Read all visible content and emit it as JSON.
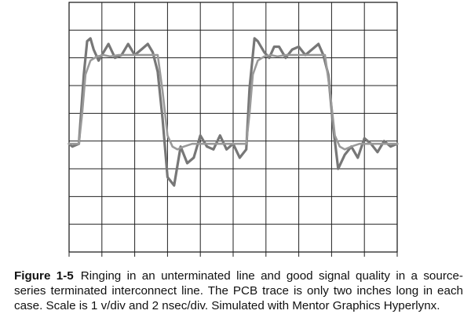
{
  "figure": {
    "label": "Figure 1-5",
    "caption": "Ringing in an unterminated line and good signal quality in a source-series terminated interconnect line. The PCB trace is only two inches long in each case. Scale is 1 v/div and 2 nsec/div. Simulated with Mentor Graphics Hyperlynx."
  },
  "chart_data": {
    "type": "line",
    "title": "",
    "xlabel": "",
    "ylabel": "",
    "x_units": "ns",
    "y_units": "V",
    "x_per_div": 2,
    "y_per_div": 1,
    "xlim": [
      0,
      20
    ],
    "ylim": [
      -7,
      2
    ],
    "x_divisions": 10,
    "y_divisions": 9,
    "grid": true,
    "legend": "none",
    "series": [
      {
        "name": "",
        "color": "#777777",
        "x": [
          0,
          0.2,
          0.6,
          0.9,
          1.1,
          1.3,
          1.5,
          1.8,
          2.1,
          2.4,
          2.8,
          3.2,
          3.6,
          4.0,
          4.4,
          4.8,
          5.1,
          5.4,
          5.7,
          6.0,
          6.4,
          6.8,
          7.2,
          7.6,
          8.0,
          8.4,
          8.8,
          9.2,
          9.6,
          10.0,
          10.4,
          10.8,
          11.0,
          11.3,
          11.5,
          11.7,
          11.9,
          12.2,
          12.5,
          12.8,
          13.2,
          13.6,
          14.0,
          14.4,
          14.8,
          15.2,
          15.5,
          15.8,
          16.1,
          16.4,
          16.8,
          17.2,
          17.6,
          18.0,
          18.4,
          18.8,
          19.2,
          19.6,
          20.0
        ],
        "y": [
          -3.1,
          -3.2,
          -3.1,
          -0.6,
          0.6,
          0.7,
          0.3,
          -0.1,
          0.2,
          0.5,
          0.0,
          0.1,
          0.5,
          0.1,
          0.3,
          0.5,
          0.2,
          -0.5,
          -2.2,
          -4.3,
          -4.6,
          -3.2,
          -3.8,
          -3.6,
          -2.8,
          -3.2,
          -3.3,
          -2.8,
          -3.3,
          -3.1,
          -3.6,
          -3.3,
          -1.1,
          0.7,
          0.6,
          0.4,
          0.2,
          0.0,
          0.4,
          0.4,
          0.0,
          0.3,
          0.4,
          0.1,
          0.3,
          0.5,
          0.1,
          -0.6,
          -2.5,
          -4.0,
          -3.5,
          -3.2,
          -3.6,
          -2.9,
          -3.1,
          -3.4,
          -3.0,
          -3.2,
          -3.1
        ]
      },
      {
        "name": "",
        "color": "#9a9a9a",
        "x": [
          0,
          0.6,
          0.8,
          1.0,
          1.3,
          1.7,
          2.1,
          2.5,
          3.0,
          4.0,
          5.0,
          5.4,
          5.7,
          6.0,
          6.3,
          6.6,
          7.0,
          7.5,
          8.0,
          9.0,
          10.0,
          10.8,
          11.0,
          11.2,
          11.5,
          11.9,
          12.3,
          12.7,
          13.2,
          14.0,
          15.0,
          15.6,
          15.9,
          16.2,
          16.5,
          16.8,
          17.2,
          17.7,
          18.2,
          19.0,
          20.0
        ],
        "y": [
          -3.1,
          -3.1,
          -2.0,
          -0.6,
          -0.1,
          0.05,
          0.1,
          0.05,
          0.1,
          0.1,
          0.1,
          0.1,
          -1.2,
          -2.8,
          -3.2,
          -3.3,
          -3.2,
          -3.1,
          -3.1,
          -3.1,
          -3.1,
          -3.1,
          -2.0,
          -0.6,
          -0.1,
          0.05,
          0.1,
          0.05,
          0.1,
          0.1,
          0.1,
          0.1,
          -1.2,
          -2.8,
          -3.2,
          -3.3,
          -3.2,
          -3.1,
          -3.1,
          -3.1,
          -3.1
        ]
      }
    ]
  }
}
